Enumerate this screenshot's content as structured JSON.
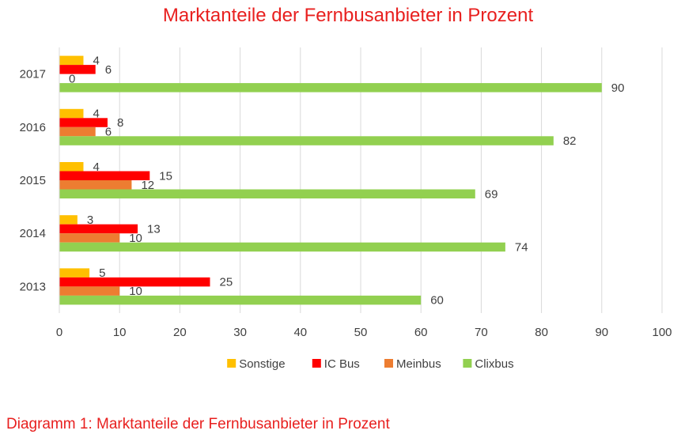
{
  "caption": "Diagramm 1: Marktanteile der Fernbusanbieter in Prozent",
  "chart_data": {
    "type": "bar",
    "orientation": "horizontal",
    "title": "Marktanteile der Fernbusanbieter in Prozent",
    "xlabel": "",
    "ylabel": "",
    "categories": [
      "2013",
      "2014",
      "2015",
      "2016",
      "2017"
    ],
    "xlim": [
      0,
      100
    ],
    "xticks": [
      0,
      10,
      20,
      30,
      40,
      50,
      60,
      70,
      80,
      90,
      100
    ],
    "grid": true,
    "legend_position": "bottom",
    "series": [
      {
        "name": "Sonstige",
        "color": "#ffc000",
        "values": [
          5,
          3,
          4,
          4,
          4
        ]
      },
      {
        "name": "IC Bus",
        "color": "#ff0000",
        "values": [
          25,
          13,
          15,
          8,
          6
        ]
      },
      {
        "name": "Meinbus",
        "color": "#ed7d31",
        "values": [
          10,
          10,
          12,
          6,
          0
        ]
      },
      {
        "name": "Clixbus",
        "color": "#92d050",
        "values": [
          60,
          74,
          69,
          82,
          90
        ]
      }
    ]
  }
}
